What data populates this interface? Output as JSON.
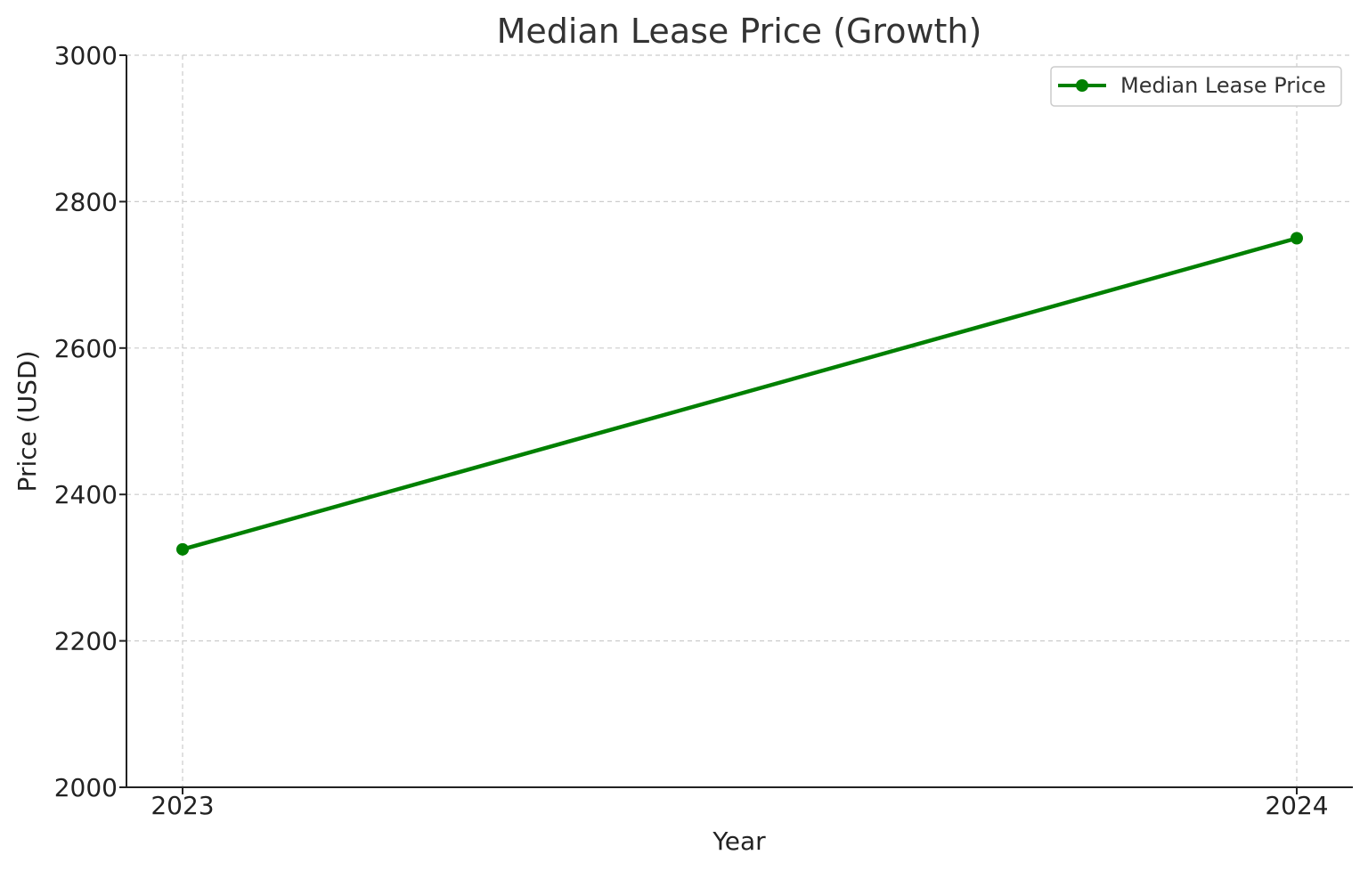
{
  "chart_data": {
    "type": "line",
    "title": "Median Lease Price (Growth)",
    "xlabel": "Year",
    "ylabel": "Price (USD)",
    "x": [
      "2023",
      "2024"
    ],
    "series": [
      {
        "name": "Median Lease Price",
        "values": [
          2325,
          2750
        ],
        "color": "#008000",
        "marker": "circle"
      }
    ],
    "ylim": [
      2000,
      3000
    ],
    "yticks": [
      2000,
      2200,
      2400,
      2600,
      2800,
      3000
    ],
    "grid": true,
    "legend": "top-right"
  }
}
